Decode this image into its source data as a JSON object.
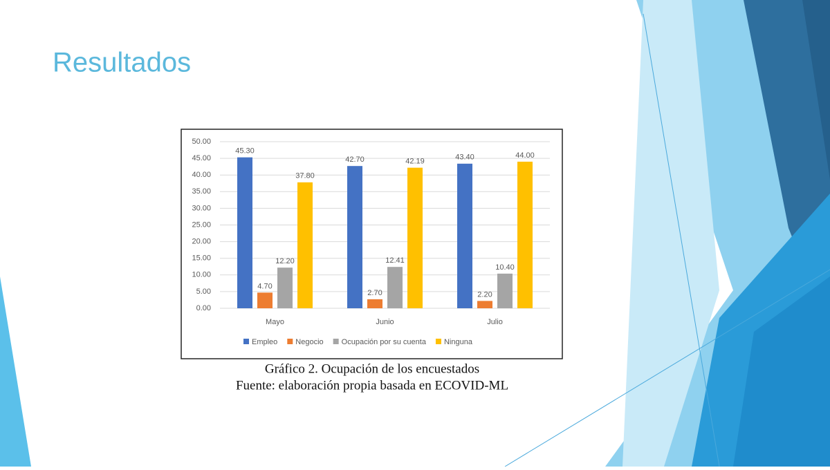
{
  "slide_title": "Resultados",
  "chart_data": {
    "type": "bar",
    "caption": [
      "Gráfico 2. Ocupación de los encuestados",
      "Fuente: elaboración propia basada en ECOVID-ML"
    ],
    "categories": [
      "Mayo",
      "Junio",
      "Julio"
    ],
    "series": [
      {
        "name": "Empleo",
        "color": "#4472c4",
        "values": [
          45.3,
          42.7,
          43.4
        ],
        "value_labels": [
          "45.30",
          "42.70",
          "43.40"
        ]
      },
      {
        "name": "Negocio",
        "color": "#ed7d31",
        "values": [
          4.7,
          2.7,
          2.2
        ],
        "value_labels": [
          "4.70",
          "2.70",
          "2.20"
        ]
      },
      {
        "name": "Ocupación por su cuenta",
        "color": "#a5a5a5",
        "values": [
          12.2,
          12.41,
          10.4
        ],
        "value_labels": [
          "12.20",
          "12.41",
          "10.40"
        ]
      },
      {
        "name": "Ninguna",
        "color": "#ffc000",
        "values": [
          37.8,
          42.19,
          44.0
        ],
        "value_labels": [
          "37.80",
          "42.19",
          "44.00"
        ]
      }
    ],
    "ylim": [
      0,
      50
    ],
    "yticks": [
      {
        "value": 0,
        "label": "0.00"
      },
      {
        "value": 5,
        "label": "5.00"
      },
      {
        "value": 10,
        "label": "10.00"
      },
      {
        "value": 15,
        "label": "15.00"
      },
      {
        "value": 20,
        "label": "20.00"
      },
      {
        "value": 25,
        "label": "25.00"
      },
      {
        "value": 30,
        "label": "30.00"
      },
      {
        "value": 35,
        "label": "35.00"
      },
      {
        "value": 40,
        "label": "40.00"
      },
      {
        "value": 45,
        "label": "45.00"
      },
      {
        "value": 50,
        "label": "50.00"
      }
    ],
    "grid": true,
    "legend": "bottom"
  }
}
